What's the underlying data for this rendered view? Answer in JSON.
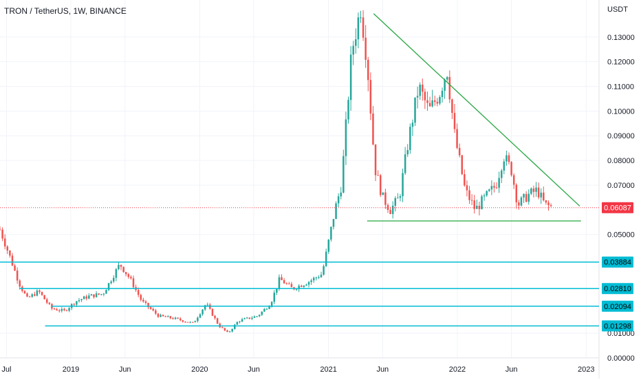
{
  "chart_data": {
    "type": "candlestick",
    "title": "TRON / TetherUS, 1W, BINANCE",
    "unit": "USDT",
    "ylim": [
      0.0,
      0.145
    ],
    "xlim": [
      2018.45,
      2023.1
    ],
    "y_ticks": [
      "0.13000",
      "0.12000",
      "0.11000",
      "0.10000",
      "0.09000",
      "0.08000",
      "0.07000",
      "0.05000",
      "0.01000",
      "0.00000"
    ],
    "y_tick_values": [
      0.13,
      0.12,
      0.11,
      0.1,
      0.09,
      0.08,
      0.07,
      0.05,
      0.01,
      0.0
    ],
    "x_ticks": [
      "Jul",
      "2019",
      "Jun",
      "2020",
      "Jun",
      "2021",
      "Jun",
      "2022",
      "Jun",
      "2023"
    ],
    "x_tick_values": [
      2018.5,
      2019.0,
      2019.42,
      2020.0,
      2020.42,
      2021.0,
      2021.42,
      2022.0,
      2022.42,
      2023.0
    ],
    "current_price": {
      "label": "0.06087",
      "value": 0.06087,
      "color": "#f23645"
    },
    "levels": [
      {
        "label": "0.03884",
        "value": 0.03884,
        "x0": 2018.45
      },
      {
        "label": "0.02810",
        "value": 0.0281,
        "x0": 2018.6
      },
      {
        "label": "0.02094",
        "value": 0.02094,
        "x0": 2018.85
      },
      {
        "label": "0.01298",
        "value": 0.01298,
        "x0": 2018.8
      }
    ],
    "trendlines": [
      {
        "name": "descending-resistance",
        "x": [
          2021.35,
          2022.95
        ],
        "y": [
          0.1395,
          0.0615
        ],
        "color": "#26a641"
      },
      {
        "name": "horizontal-support",
        "x": [
          2021.3,
          2022.96
        ],
        "y": [
          0.0555,
          0.0555
        ],
        "color": "#26a641"
      }
    ],
    "level_color": "#00bcd4",
    "up_color": "#26a69a",
    "down_color": "#ef5350",
    "anchors": [
      [
        2018.45,
        0.052
      ],
      [
        2018.52,
        0.042
      ],
      [
        2018.6,
        0.03
      ],
      [
        2018.66,
        0.024
      ],
      [
        2018.75,
        0.027
      ],
      [
        2018.85,
        0.02
      ],
      [
        2018.95,
        0.019
      ],
      [
        2019.04,
        0.023
      ],
      [
        2019.14,
        0.025
      ],
      [
        2019.25,
        0.026
      ],
      [
        2019.38,
        0.038
      ],
      [
        2019.46,
        0.032
      ],
      [
        2019.55,
        0.023
      ],
      [
        2019.68,
        0.017
      ],
      [
        2019.8,
        0.016
      ],
      [
        2019.95,
        0.014
      ],
      [
        2020.05,
        0.022
      ],
      [
        2020.15,
        0.013
      ],
      [
        2020.22,
        0.01
      ],
      [
        2020.3,
        0.015
      ],
      [
        2020.45,
        0.017
      ],
      [
        2020.55,
        0.022
      ],
      [
        2020.62,
        0.032
      ],
      [
        2020.72,
        0.028
      ],
      [
        2020.85,
        0.031
      ],
      [
        2020.95,
        0.034
      ],
      [
        2021.05,
        0.06
      ],
      [
        2021.1,
        0.07
      ],
      [
        2021.18,
        0.124
      ],
      [
        2021.25,
        0.142
      ],
      [
        2021.3,
        0.12
      ],
      [
        2021.36,
        0.077
      ],
      [
        2021.42,
        0.065
      ],
      [
        2021.48,
        0.06
      ],
      [
        2021.55,
        0.065
      ],
      [
        2021.62,
        0.088
      ],
      [
        2021.7,
        0.11
      ],
      [
        2021.78,
        0.1
      ],
      [
        2021.86,
        0.107
      ],
      [
        2021.92,
        0.117
      ],
      [
        2021.98,
        0.09
      ],
      [
        2022.06,
        0.068
      ],
      [
        2022.14,
        0.06
      ],
      [
        2022.2,
        0.064
      ],
      [
        2022.3,
        0.07
      ],
      [
        2022.36,
        0.082
      ],
      [
        2022.42,
        0.076
      ],
      [
        2022.47,
        0.062
      ],
      [
        2022.55,
        0.066
      ],
      [
        2022.62,
        0.068
      ],
      [
        2022.68,
        0.062
      ],
      [
        2022.74,
        0.061
      ]
    ]
  }
}
